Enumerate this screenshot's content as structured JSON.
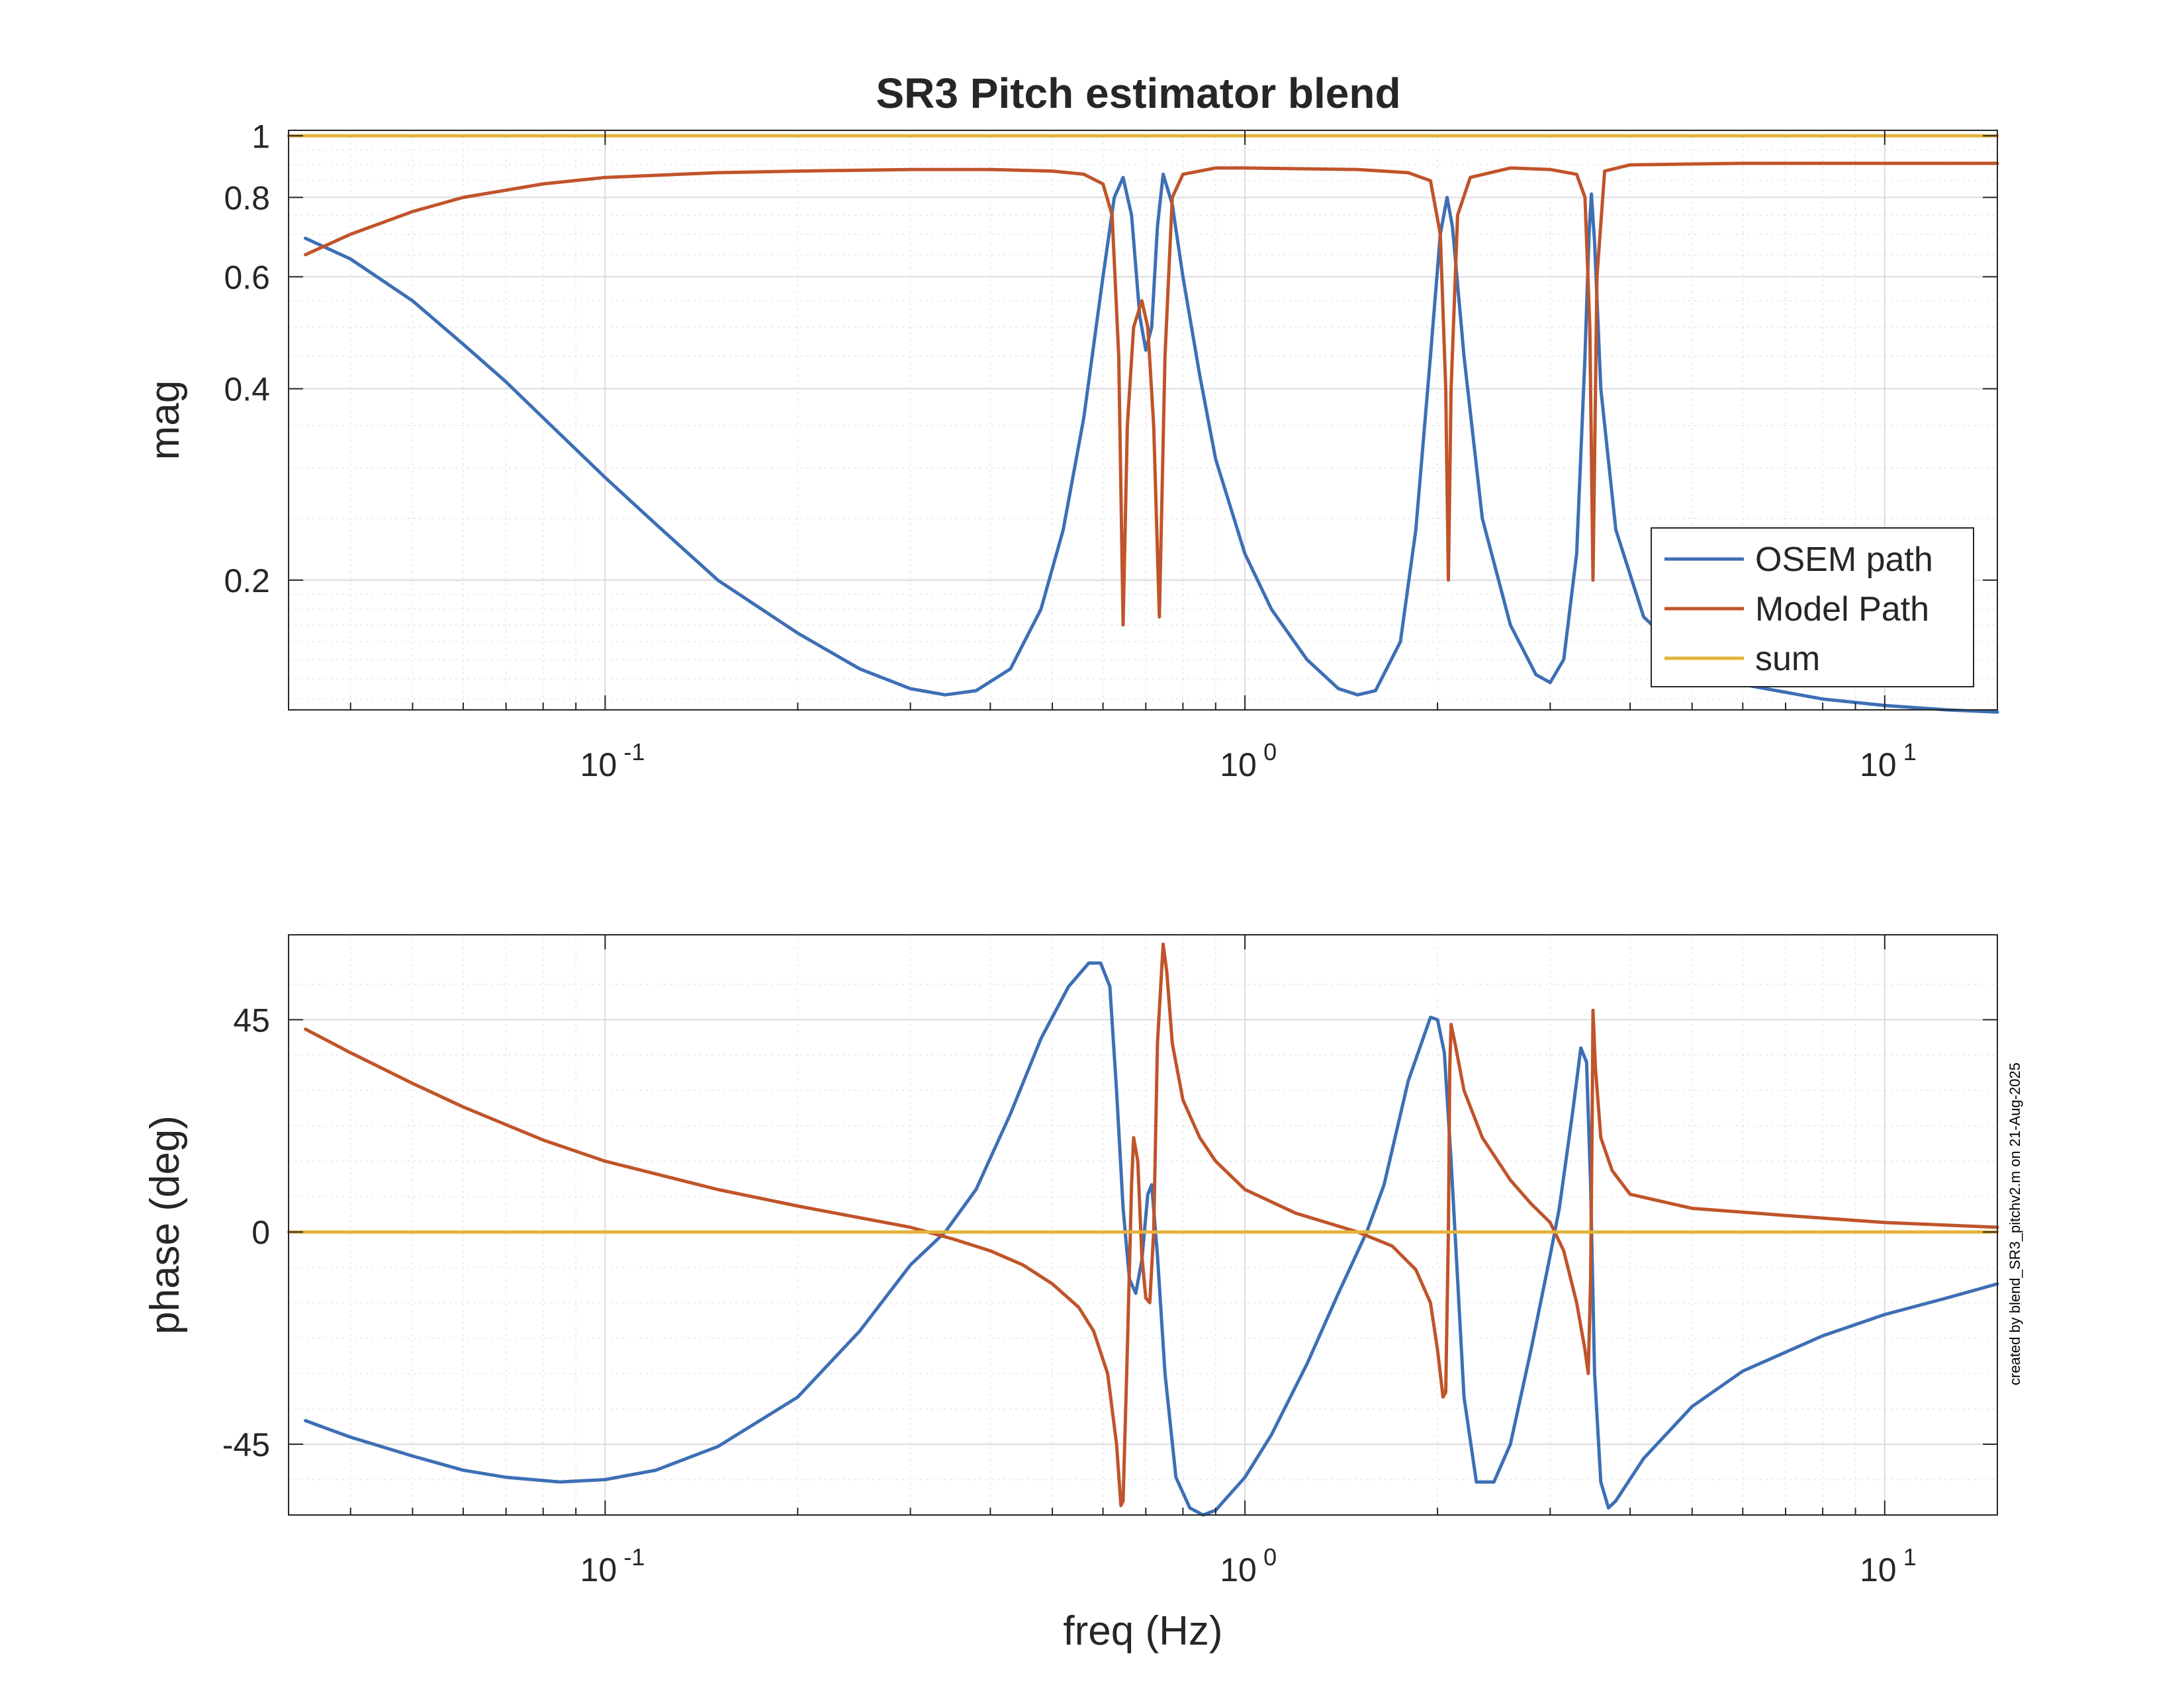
{
  "figure": {
    "title": "SR3 Pitch estimator blend",
    "footer_note": "created by blend_SR3_pitchv2.m on 21-Aug-2025",
    "xlabel": "freq (Hz)",
    "colors": {
      "osem": "#3d6fb5",
      "model": "#c0542a",
      "sum": "#e3b43a",
      "axis": "#262626",
      "grid": "#dcdcdc"
    }
  },
  "legend": {
    "position": "bottom-right of magnitude panel",
    "items": [
      {
        "label": "OSEM path",
        "color": "#3d6fb5"
      },
      {
        "label": "Model Path",
        "color": "#c0542a"
      },
      {
        "label": "sum",
        "color": "#e3b43a"
      }
    ]
  },
  "chart_data": [
    {
      "type": "line",
      "panel": "magnitude",
      "title": "SR3 Pitch estimator blend",
      "xlabel": "",
      "ylabel": "mag",
      "xscale": "log",
      "yscale": "log",
      "xlim": [
        0.032,
        15
      ],
      "ylim": [
        0.125,
        1.02
      ],
      "xticks": [
        0.1,
        1,
        10
      ],
      "xtick_labels": [
        {
          "base": "10",
          "exp": "-1"
        },
        {
          "base": "10",
          "exp": "0"
        },
        {
          "base": "10",
          "exp": "1"
        }
      ],
      "yticks": [
        0.2,
        0.4,
        0.6,
        0.8,
        1
      ],
      "ytick_labels": [
        "0.2",
        "0.4",
        "0.6",
        "0.8",
        "1"
      ],
      "grid": true,
      "legend_placement": "bottom-right",
      "series": [
        {
          "name": "OSEM path",
          "color": "#3d6fb5",
          "points": [
            [
              0.034,
              0.69
            ],
            [
              0.04,
              0.64
            ],
            [
              0.05,
              0.55
            ],
            [
              0.06,
              0.47
            ],
            [
              0.07,
              0.41
            ],
            [
              0.08,
              0.36
            ],
            [
              0.1,
              0.29
            ],
            [
              0.12,
              0.245
            ],
            [
              0.15,
              0.2
            ],
            [
              0.2,
              0.165
            ],
            [
              0.25,
              0.145
            ],
            [
              0.3,
              0.135
            ],
            [
              0.34,
              0.132
            ],
            [
              0.38,
              0.134
            ],
            [
              0.43,
              0.145
            ],
            [
              0.48,
              0.18
            ],
            [
              0.52,
              0.24
            ],
            [
              0.56,
              0.36
            ],
            [
              0.6,
              0.6
            ],
            [
              0.625,
              0.8
            ],
            [
              0.645,
              0.86
            ],
            [
              0.665,
              0.75
            ],
            [
              0.685,
              0.52
            ],
            [
              0.7,
              0.46
            ],
            [
              0.715,
              0.5
            ],
            [
              0.73,
              0.72
            ],
            [
              0.745,
              0.87
            ],
            [
              0.77,
              0.78
            ],
            [
              0.8,
              0.6
            ],
            [
              0.85,
              0.42
            ],
            [
              0.9,
              0.31
            ],
            [
              1.0,
              0.22
            ],
            [
              1.1,
              0.18
            ],
            [
              1.25,
              0.15
            ],
            [
              1.4,
              0.135
            ],
            [
              1.5,
              0.132
            ],
            [
              1.6,
              0.134
            ],
            [
              1.75,
              0.16
            ],
            [
              1.85,
              0.24
            ],
            [
              1.95,
              0.45
            ],
            [
              2.02,
              0.7
            ],
            [
              2.07,
              0.8
            ],
            [
              2.11,
              0.72
            ],
            [
              2.2,
              0.45
            ],
            [
              2.35,
              0.25
            ],
            [
              2.6,
              0.17
            ],
            [
              2.85,
              0.142
            ],
            [
              3.0,
              0.138
            ],
            [
              3.15,
              0.15
            ],
            [
              3.3,
              0.22
            ],
            [
              3.4,
              0.45
            ],
            [
              3.45,
              0.7
            ],
            [
              3.48,
              0.81
            ],
            [
              3.52,
              0.68
            ],
            [
              3.6,
              0.4
            ],
            [
              3.8,
              0.24
            ],
            [
              4.2,
              0.175
            ],
            [
              5,
              0.148
            ],
            [
              6,
              0.137
            ],
            [
              8,
              0.13
            ],
            [
              10,
              0.127
            ],
            [
              12.5,
              0.125
            ],
            [
              15,
              0.124
            ]
          ]
        },
        {
          "name": "Model Path",
          "color": "#c0542a",
          "points": [
            [
              0.034,
              0.65
            ],
            [
              0.04,
              0.7
            ],
            [
              0.05,
              0.76
            ],
            [
              0.06,
              0.8
            ],
            [
              0.08,
              0.84
            ],
            [
              0.1,
              0.86
            ],
            [
              0.15,
              0.875
            ],
            [
              0.2,
              0.88
            ],
            [
              0.3,
              0.885
            ],
            [
              0.4,
              0.885
            ],
            [
              0.5,
              0.88
            ],
            [
              0.56,
              0.87
            ],
            [
              0.6,
              0.84
            ],
            [
              0.62,
              0.75
            ],
            [
              0.635,
              0.45
            ],
            [
              0.645,
              0.17
            ],
            [
              0.655,
              0.35
            ],
            [
              0.67,
              0.5
            ],
            [
              0.69,
              0.55
            ],
            [
              0.705,
              0.5
            ],
            [
              0.72,
              0.35
            ],
            [
              0.735,
              0.175
            ],
            [
              0.75,
              0.45
            ],
            [
              0.77,
              0.8
            ],
            [
              0.8,
              0.87
            ],
            [
              0.9,
              0.89
            ],
            [
              1.0,
              0.89
            ],
            [
              1.5,
              0.885
            ],
            [
              1.8,
              0.875
            ],
            [
              1.95,
              0.85
            ],
            [
              2.02,
              0.7
            ],
            [
              2.06,
              0.4
            ],
            [
              2.08,
              0.2
            ],
            [
              2.1,
              0.4
            ],
            [
              2.15,
              0.75
            ],
            [
              2.25,
              0.86
            ],
            [
              2.6,
              0.89
            ],
            [
              3.0,
              0.885
            ],
            [
              3.3,
              0.87
            ],
            [
              3.4,
              0.8
            ],
            [
              3.46,
              0.5
            ],
            [
              3.5,
              0.2
            ],
            [
              3.55,
              0.6
            ],
            [
              3.65,
              0.88
            ],
            [
              4,
              0.9
            ],
            [
              6,
              0.905
            ],
            [
              10,
              0.905
            ],
            [
              15,
              0.905
            ]
          ]
        },
        {
          "name": "sum",
          "color": "#e3b43a",
          "points": [
            [
              0.032,
              1.0
            ],
            [
              15,
              1.0
            ]
          ]
        }
      ]
    },
    {
      "type": "line",
      "panel": "phase",
      "title": "",
      "xlabel": "freq (Hz)",
      "ylabel": "phase (deg)",
      "xscale": "log",
      "yscale": "linear",
      "xlim": [
        0.032,
        15
      ],
      "ylim": [
        -60,
        63
      ],
      "xticks": [
        0.1,
        1,
        10
      ],
      "xtick_labels": [
        {
          "base": "10",
          "exp": "-1"
        },
        {
          "base": "10",
          "exp": "0"
        },
        {
          "base": "10",
          "exp": "1"
        }
      ],
      "yticks": [
        -45,
        0,
        45
      ],
      "ytick_labels": [
        "-45",
        "0",
        "45"
      ],
      "grid": true,
      "series": [
        {
          "name": "OSEM path",
          "color": "#3d6fb5",
          "points": [
            [
              0.034,
              -40
            ],
            [
              0.04,
              -43.5
            ],
            [
              0.05,
              -47.5
            ],
            [
              0.06,
              -50.5
            ],
            [
              0.07,
              -52
            ],
            [
              0.085,
              -53
            ],
            [
              0.1,
              -52.5
            ],
            [
              0.12,
              -50.5
            ],
            [
              0.15,
              -45.5
            ],
            [
              0.2,
              -35
            ],
            [
              0.25,
              -21
            ],
            [
              0.3,
              -7
            ],
            [
              0.34,
              0
            ],
            [
              0.38,
              9
            ],
            [
              0.43,
              25
            ],
            [
              0.48,
              41
            ],
            [
              0.53,
              52
            ],
            [
              0.57,
              57
            ],
            [
              0.595,
              57
            ],
            [
              0.615,
              52
            ],
            [
              0.63,
              30
            ],
            [
              0.645,
              5
            ],
            [
              0.66,
              -10
            ],
            [
              0.675,
              -13
            ],
            [
              0.69,
              -6
            ],
            [
              0.705,
              8
            ],
            [
              0.715,
              10
            ],
            [
              0.73,
              -5
            ],
            [
              0.75,
              -30
            ],
            [
              0.78,
              -52
            ],
            [
              0.82,
              -58.5
            ],
            [
              0.86,
              -60
            ],
            [
              0.9,
              -59
            ],
            [
              1.0,
              -52
            ],
            [
              1.1,
              -43
            ],
            [
              1.25,
              -28
            ],
            [
              1.4,
              -13
            ],
            [
              1.55,
              0
            ],
            [
              1.65,
              10
            ],
            [
              1.8,
              32
            ],
            [
              1.95,
              45.5
            ],
            [
              2.0,
              45
            ],
            [
              2.05,
              38
            ],
            [
              2.1,
              15
            ],
            [
              2.15,
              -10
            ],
            [
              2.2,
              -35
            ],
            [
              2.3,
              -53
            ],
            [
              2.45,
              -53
            ],
            [
              2.6,
              -45
            ],
            [
              2.8,
              -25
            ],
            [
              3.0,
              -5
            ],
            [
              3.1,
              5
            ],
            [
              3.25,
              25
            ],
            [
              3.35,
              39
            ],
            [
              3.42,
              36
            ],
            [
              3.47,
              10
            ],
            [
              3.52,
              -30
            ],
            [
              3.6,
              -53
            ],
            [
              3.7,
              -58.5
            ],
            [
              3.8,
              -57
            ],
            [
              4.2,
              -48
            ],
            [
              5,
              -37
            ],
            [
              6,
              -29.5
            ],
            [
              8,
              -22
            ],
            [
              10,
              -17.5
            ],
            [
              12.5,
              -14
            ],
            [
              15,
              -11
            ]
          ]
        },
        {
          "name": "Model Path",
          "color": "#c0542a",
          "points": [
            [
              0.034,
              43
            ],
            [
              0.04,
              38
            ],
            [
              0.05,
              31.5
            ],
            [
              0.06,
              26.5
            ],
            [
              0.08,
              19.5
            ],
            [
              0.1,
              15
            ],
            [
              0.15,
              9
            ],
            [
              0.2,
              5.5
            ],
            [
              0.3,
              1
            ],
            [
              0.35,
              -1.5
            ],
            [
              0.4,
              -4
            ],
            [
              0.45,
              -7
            ],
            [
              0.5,
              -11
            ],
            [
              0.55,
              -16
            ],
            [
              0.58,
              -21
            ],
            [
              0.61,
              -30
            ],
            [
              0.63,
              -45
            ],
            [
              0.64,
              -58
            ],
            [
              0.645,
              -57
            ],
            [
              0.655,
              -25
            ],
            [
              0.665,
              10
            ],
            [
              0.67,
              20
            ],
            [
              0.68,
              15
            ],
            [
              0.69,
              -5
            ],
            [
              0.7,
              -14
            ],
            [
              0.71,
              -15
            ],
            [
              0.72,
              0
            ],
            [
              0.73,
              40
            ],
            [
              0.745,
              61
            ],
            [
              0.755,
              55
            ],
            [
              0.77,
              40
            ],
            [
              0.8,
              28
            ],
            [
              0.85,
              20
            ],
            [
              0.9,
              15
            ],
            [
              1.0,
              9
            ],
            [
              1.2,
              4
            ],
            [
              1.5,
              0
            ],
            [
              1.7,
              -3
            ],
            [
              1.85,
              -8
            ],
            [
              1.95,
              -15
            ],
            [
              2.0,
              -25
            ],
            [
              2.04,
              -35
            ],
            [
              2.06,
              -34
            ],
            [
              2.08,
              0
            ],
            [
              2.09,
              35
            ],
            [
              2.1,
              44
            ],
            [
              2.13,
              40
            ],
            [
              2.2,
              30
            ],
            [
              2.35,
              20
            ],
            [
              2.6,
              11
            ],
            [
              2.8,
              6
            ],
            [
              3.0,
              2
            ],
            [
              3.15,
              -4
            ],
            [
              3.3,
              -15
            ],
            [
              3.4,
              -25
            ],
            [
              3.44,
              -30
            ],
            [
              3.47,
              -10
            ],
            [
              3.49,
              25
            ],
            [
              3.5,
              47
            ],
            [
              3.53,
              35
            ],
            [
              3.6,
              20
            ],
            [
              3.75,
              13
            ],
            [
              4,
              8
            ],
            [
              5,
              5
            ],
            [
              7,
              3.5
            ],
            [
              10,
              2
            ],
            [
              15,
              1
            ]
          ]
        },
        {
          "name": "sum",
          "color": "#e3b43a",
          "points": [
            [
              0.032,
              0
            ],
            [
              15,
              0
            ]
          ]
        }
      ]
    }
  ]
}
